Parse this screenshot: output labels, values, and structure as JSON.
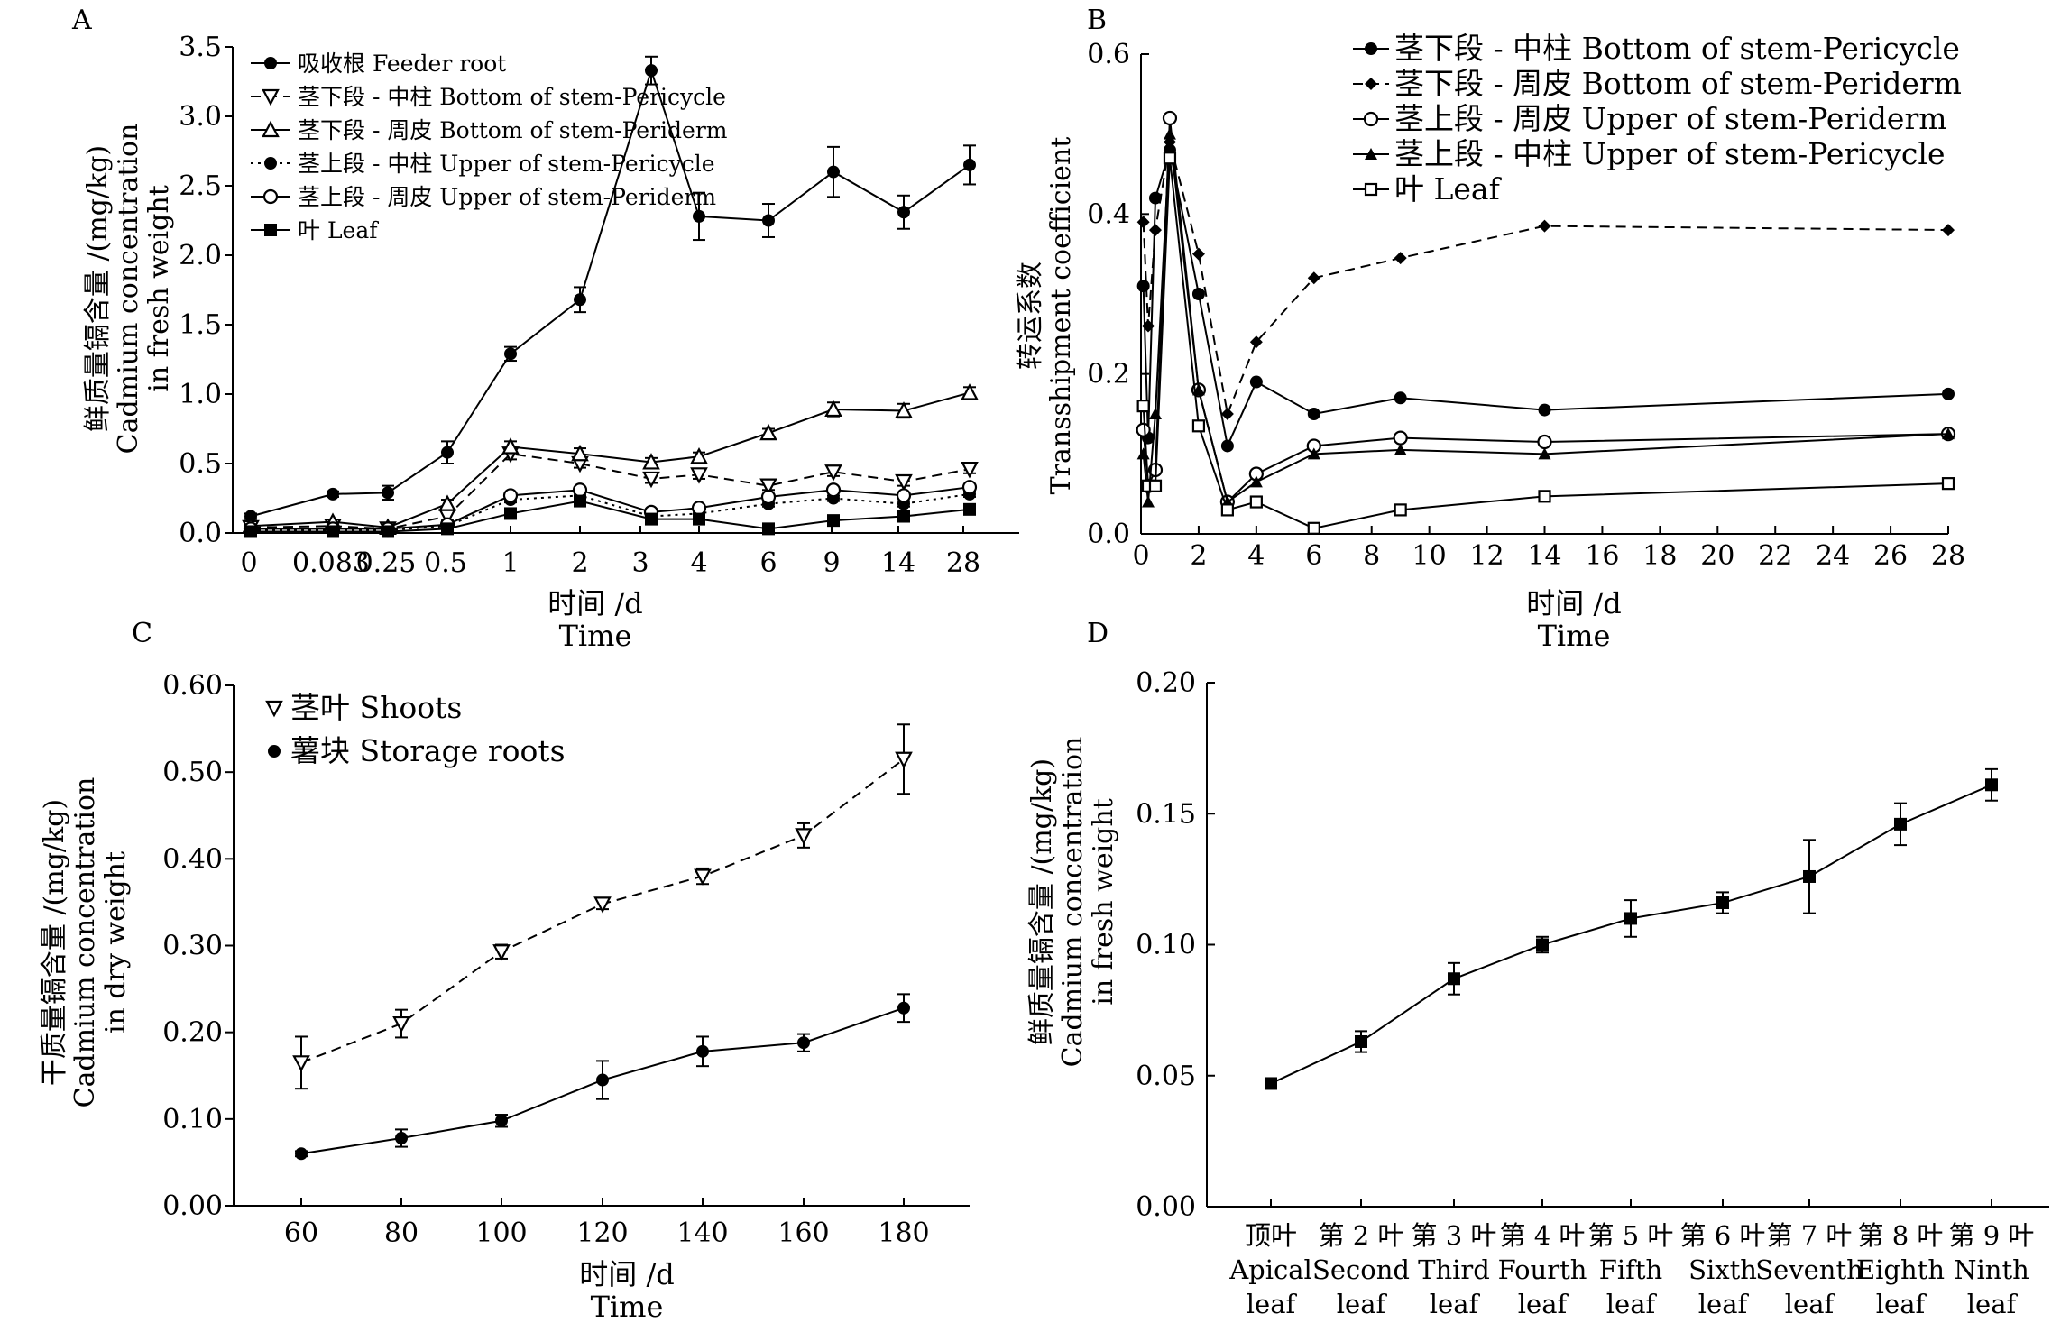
{
  "chart_data": [
    {
      "panel": "A",
      "type": "line",
      "x_categories": [
        "0",
        "0.083",
        "0.25",
        "0.5",
        "1",
        "2",
        "3",
        "4",
        "6",
        "9",
        "14",
        "28"
      ],
      "xlabel_cn": "时间 /d",
      "xlabel_en": "Time",
      "ylabel_cn": "鲜质量镉含量 /(mg/kg)",
      "ylabel_en": [
        "Cadmium concentration",
        "in fresh weight"
      ],
      "ylim": [
        0,
        3.5
      ],
      "yticks": [
        "0.0",
        "0.5",
        "1.0",
        "1.5",
        "2.0",
        "2.5",
        "3.0",
        "3.5"
      ],
      "legend": "top-left",
      "series": [
        {
          "name": "吸收根 Feeder root",
          "marker": "filled-circle",
          "dash": "solid",
          "values": [
            0.12,
            0.28,
            0.29,
            0.58,
            1.29,
            1.68,
            3.33,
            2.28,
            2.25,
            2.6,
            2.31,
            2.65
          ],
          "errors": [
            0.02,
            0.02,
            0.05,
            0.08,
            0.05,
            0.09,
            0.1,
            0.17,
            0.12,
            0.18,
            0.12,
            0.14
          ]
        },
        {
          "name": "茎下段 - 中柱 Bottom of stem-Pericycle",
          "marker": "down-triangle",
          "dash": "dashed",
          "values": [
            0.04,
            0.05,
            0.03,
            0.12,
            0.57,
            0.5,
            0.39,
            0.42,
            0.34,
            0.44,
            0.37,
            0.46
          ],
          "errors": [
            0.01,
            0.01,
            0.01,
            0.03,
            0.04,
            0.03,
            0.03,
            0.03,
            0.03,
            0.03,
            0.03,
            0.03
          ]
        },
        {
          "name": "茎下段 - 周皮 Bottom of stem-Periderm",
          "marker": "up-triangle",
          "dash": "solid",
          "values": [
            0.05,
            0.08,
            0.04,
            0.21,
            0.62,
            0.57,
            0.51,
            0.55,
            0.72,
            0.89,
            0.88,
            1.01
          ],
          "errors": [
            0.01,
            0.01,
            0.01,
            0.03,
            0.04,
            0.04,
            0.03,
            0.03,
            0.03,
            0.05,
            0.05,
            0.04
          ]
        },
        {
          "name": "茎上段 - 中柱 Upper of stem-Pericycle",
          "marker": "filled-circle",
          "dash": "dotted",
          "values": [
            0.02,
            0.02,
            0.02,
            0.05,
            0.24,
            0.27,
            0.12,
            0.14,
            0.21,
            0.25,
            0.21,
            0.28
          ],
          "errors": [
            0.01,
            0.01,
            0.01,
            0.01,
            0.02,
            0.02,
            0.02,
            0.02,
            0.02,
            0.02,
            0.02,
            0.02
          ]
        },
        {
          "name": "茎上段 - 周皮 Upper of stem-Periderm",
          "marker": "open-circle",
          "dash": "solid",
          "values": [
            0.03,
            0.03,
            0.03,
            0.06,
            0.27,
            0.31,
            0.15,
            0.18,
            0.26,
            0.31,
            0.27,
            0.33
          ],
          "errors": [
            0.01,
            0.01,
            0.01,
            0.01,
            0.02,
            0.02,
            0.02,
            0.02,
            0.02,
            0.02,
            0.02,
            0.02
          ]
        },
        {
          "name": "叶 Leaf",
          "marker": "filled-square",
          "dash": "solid",
          "values": [
            0.01,
            0.01,
            0.01,
            0.03,
            0.14,
            0.23,
            0.1,
            0.1,
            0.03,
            0.09,
            0.12,
            0.17
          ],
          "errors": [
            0.005,
            0.005,
            0.005,
            0.01,
            0.02,
            0.02,
            0.02,
            0.02,
            0.01,
            0.02,
            0.02,
            0.02
          ]
        }
      ]
    },
    {
      "panel": "B",
      "type": "line",
      "xlabel_cn": "时间 /d",
      "xlabel_en": "Time",
      "ylabel_cn": "转运系数",
      "ylabel_en": "Transshipment coefficient",
      "xlim": [
        0,
        28
      ],
      "xticks": [
        0,
        2,
        4,
        6,
        8,
        10,
        12,
        14,
        16,
        18,
        20,
        22,
        24,
        26,
        28
      ],
      "ylim": [
        0,
        0.6
      ],
      "yticks": [
        "0.0",
        "0.2",
        "0.4",
        "0.6"
      ],
      "legend": "top-right",
      "series": [
        {
          "name": "茎下段 - 中柱 Bottom of stem-Pericycle",
          "marker": "filled-circle",
          "dash": "solid",
          "x": [
            0.083,
            0.25,
            0.5,
            1,
            2,
            3,
            4,
            6,
            9,
            14,
            28
          ],
          "values": [
            0.31,
            0.12,
            0.42,
            0.48,
            0.3,
            0.11,
            0.19,
            0.15,
            0.17,
            0.155,
            0.175
          ]
        },
        {
          "name": "茎下段 - 周皮 Bottom of stem-Periderm",
          "marker": "filled-diamond",
          "dash": "dashed",
          "x": [
            0.083,
            0.25,
            0.5,
            1,
            2,
            3,
            4,
            6,
            9,
            14,
            28
          ],
          "values": [
            0.39,
            0.26,
            0.38,
            0.49,
            0.35,
            0.15,
            0.24,
            0.32,
            0.345,
            0.385,
            0.38
          ]
        },
        {
          "name": "茎上段 - 周皮 Upper of stem-Periderm",
          "marker": "open-circle",
          "dash": "solid",
          "x": [
            0.083,
            0.25,
            0.5,
            1,
            2,
            3,
            4,
            6,
            9,
            14,
            28
          ],
          "values": [
            0.13,
            0.06,
            0.08,
            0.52,
            0.18,
            0.04,
            0.075,
            0.11,
            0.12,
            0.115,
            0.125
          ]
        },
        {
          "name": "茎上段 - 中柱 Upper of stem-Pericycle",
          "marker": "filled-triangle",
          "dash": "solid",
          "x": [
            0.083,
            0.25,
            0.5,
            1,
            2,
            3,
            4,
            6,
            9,
            14,
            28
          ],
          "values": [
            0.1,
            0.04,
            0.15,
            0.5,
            0.18,
            0.04,
            0.065,
            0.1,
            0.105,
            0.1,
            0.125
          ]
        },
        {
          "name": "叶 Leaf",
          "marker": "open-square",
          "dash": "solid",
          "x": [
            0.083,
            0.25,
            0.5,
            1,
            2,
            3,
            4,
            6,
            9,
            14,
            28
          ],
          "values": [
            0.16,
            0.06,
            0.06,
            0.47,
            0.135,
            0.03,
            0.04,
            0.007,
            0.03,
            0.047,
            0.063
          ]
        }
      ]
    },
    {
      "panel": "C",
      "type": "line",
      "categories": [
        "60",
        "80",
        "100",
        "120",
        "140",
        "160",
        "180"
      ],
      "xlabel_cn": "时间 /d",
      "xlabel_en": "Time",
      "ylabel_cn": "干质量镉含量 /(mg/kg)",
      "ylabel_en": [
        "Cadmium concentration",
        "in dry weight"
      ],
      "ylim": [
        0,
        0.6
      ],
      "yticks": [
        "0.00",
        "0.10",
        "0.20",
        "0.30",
        "0.40",
        "0.50",
        "0.60"
      ],
      "legend": "top-left",
      "series": [
        {
          "name": "茎叶 Shoots",
          "marker": "down-triangle",
          "dash": "dashed",
          "values": [
            0.165,
            0.21,
            0.293,
            0.348,
            0.38,
            0.427,
            0.515
          ],
          "errors": [
            0.03,
            0.016,
            0.008,
            0.006,
            0.009,
            0.014,
            0.04
          ]
        },
        {
          "name": "薯块 Storage roots",
          "marker": "filled-circle",
          "dash": "solid",
          "values": [
            0.06,
            0.078,
            0.098,
            0.145,
            0.178,
            0.188,
            0.228
          ],
          "errors": [
            0.003,
            0.01,
            0.007,
            0.022,
            0.017,
            0.01,
            0.016
          ]
        }
      ]
    },
    {
      "panel": "D",
      "type": "line",
      "categories": [
        [
          "顶叶",
          "Apical",
          "leaf"
        ],
        [
          "第 2 叶",
          "Second",
          "leaf"
        ],
        [
          "第 3 叶",
          "Third",
          "leaf"
        ],
        [
          "第 4 叶",
          "Fourth",
          "leaf"
        ],
        [
          "第 5 叶",
          "Fifth",
          "leaf"
        ],
        [
          "第 6 叶",
          "Sixth",
          "leaf"
        ],
        [
          "第 7 叶",
          "Seventh",
          "leaf"
        ],
        [
          "第 8 叶",
          "Eighth",
          "leaf"
        ],
        [
          "第 9 叶",
          "Ninth",
          "leaf"
        ]
      ],
      "ylabel_cn": "鲜质量镉含量 /(mg/kg)",
      "ylabel_en": [
        "Cadmium concentration",
        "in fresh weight"
      ],
      "ylim": [
        0,
        0.2
      ],
      "yticks": [
        "0.00",
        "0.05",
        "0.10",
        "0.15",
        "0.20"
      ],
      "series": [
        {
          "marker": "filled-square",
          "dash": "solid",
          "values": [
            0.047,
            0.063,
            0.087,
            0.1,
            0.11,
            0.116,
            0.126,
            0.146,
            0.161
          ],
          "errors": [
            0.001,
            0.004,
            0.006,
            0.003,
            0.007,
            0.004,
            0.014,
            0.008,
            0.006
          ]
        }
      ]
    }
  ]
}
